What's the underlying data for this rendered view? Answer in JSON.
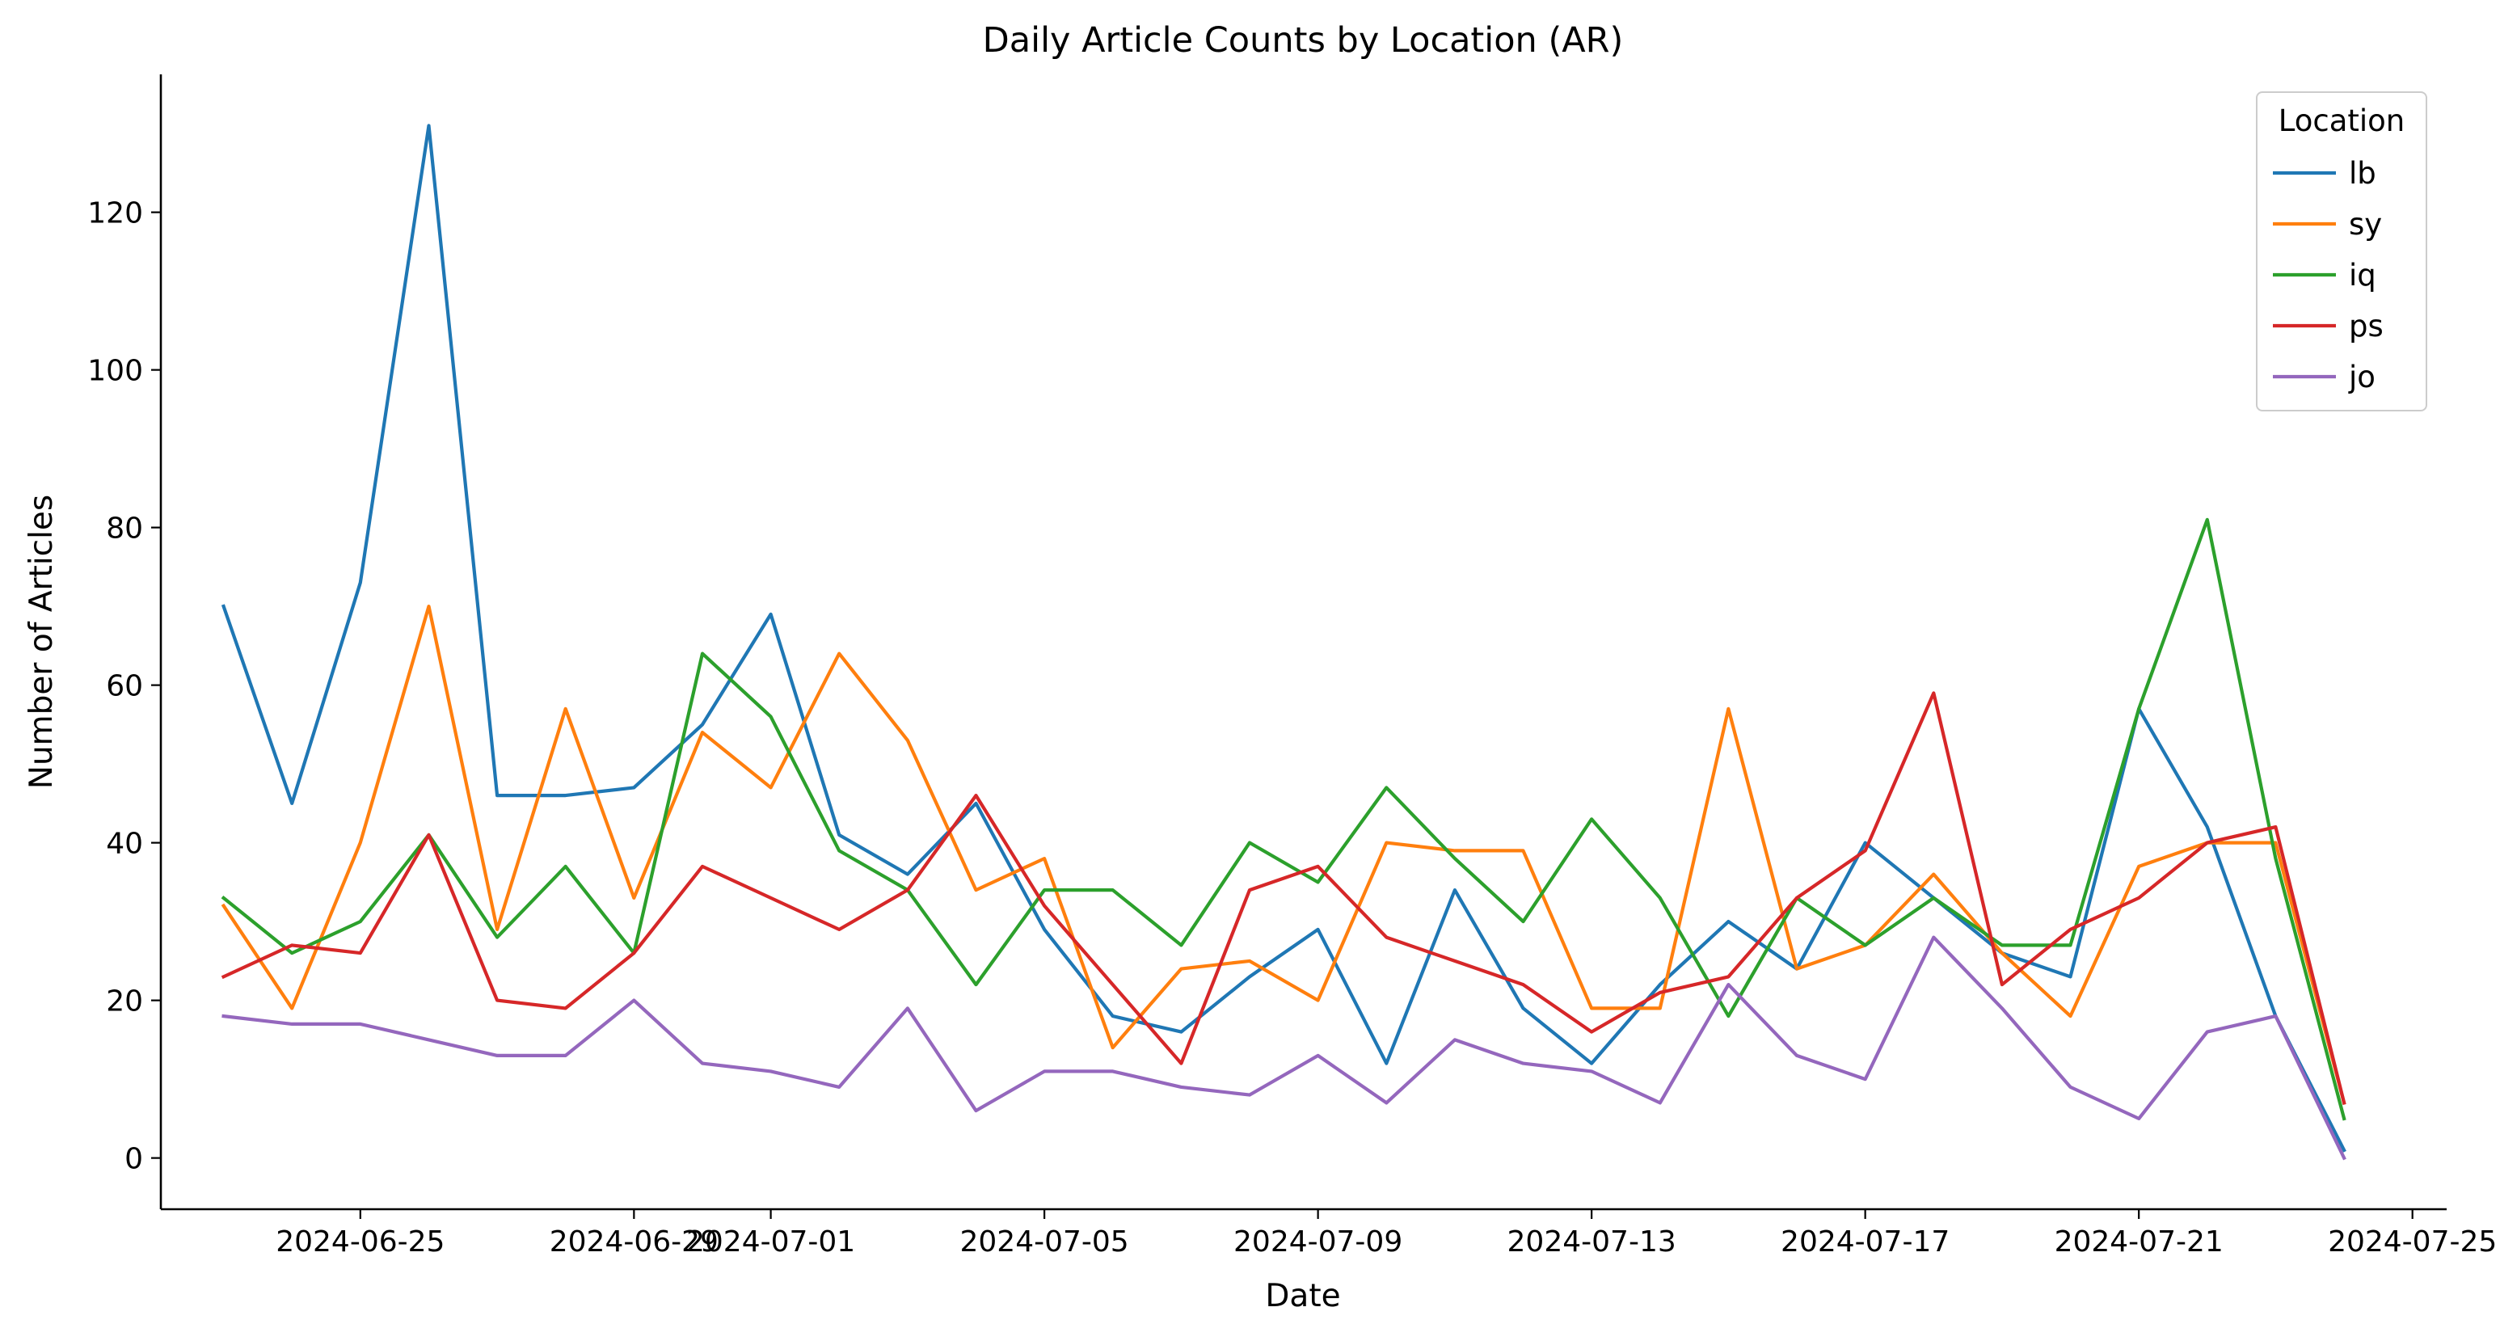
{
  "chart_data": {
    "type": "line",
    "title": "Daily Article Counts by Location (AR)",
    "xlabel": "Date",
    "ylabel": "Number of Articles",
    "x": [
      "2024-06-23",
      "2024-06-24",
      "2024-06-25",
      "2024-06-26",
      "2024-06-27",
      "2024-06-28",
      "2024-06-29",
      "2024-06-30",
      "2024-07-01",
      "2024-07-02",
      "2024-07-03",
      "2024-07-04",
      "2024-07-05",
      "2024-07-06",
      "2024-07-07",
      "2024-07-08",
      "2024-07-09",
      "2024-07-10",
      "2024-07-11",
      "2024-07-12",
      "2024-07-13",
      "2024-07-14",
      "2024-07-15",
      "2024-07-16",
      "2024-07-17",
      "2024-07-18",
      "2024-07-19",
      "2024-07-20",
      "2024-07-21",
      "2024-07-22",
      "2024-07-23",
      "2024-07-24"
    ],
    "xlim": [
      "2024-06-22T02:00",
      "2024-07-25T12:00"
    ],
    "ylim": [
      -6.5,
      137.5
    ],
    "x_ticks": [
      "2024-06-25",
      "2024-06-29",
      "2024-07-01",
      "2024-07-05",
      "2024-07-09",
      "2024-07-13",
      "2024-07-17",
      "2024-07-21",
      "2024-07-25"
    ],
    "y_ticks": [
      0,
      20,
      40,
      60,
      80,
      100,
      120
    ],
    "grid": false,
    "legend": {
      "title": "Location",
      "position": "top-right"
    },
    "series": [
      {
        "name": "lb",
        "color": "#1f77b4",
        "values": [
          70,
          45,
          73,
          131,
          46,
          46,
          47,
          55,
          69,
          41,
          36,
          45,
          29,
          18,
          16,
          23,
          29,
          12,
          34,
          19,
          12,
          22,
          30,
          24,
          40,
          33,
          26,
          23,
          57,
          42,
          18,
          1
        ]
      },
      {
        "name": "sy",
        "color": "#ff7f0e",
        "values": [
          32,
          19,
          40,
          70,
          29,
          57,
          33,
          54,
          47,
          64,
          53,
          34,
          38,
          14,
          24,
          25,
          20,
          40,
          39,
          39,
          19,
          19,
          57,
          24,
          27,
          36,
          26,
          18,
          37,
          40,
          40,
          7
        ]
      },
      {
        "name": "iq",
        "color": "#2ca02c",
        "values": [
          33,
          26,
          30,
          41,
          28,
          37,
          26,
          64,
          56,
          39,
          34,
          22,
          34,
          34,
          27,
          40,
          35,
          47,
          38,
          30,
          43,
          33,
          18,
          33,
          27,
          33,
          27,
          27,
          57,
          81,
          38,
          5
        ]
      },
      {
        "name": "ps",
        "color": "#d62728",
        "values": [
          23,
          27,
          26,
          41,
          20,
          19,
          26,
          37,
          33,
          29,
          34,
          46,
          32,
          22,
          12,
          34,
          37,
          28,
          25,
          22,
          16,
          21,
          23,
          33,
          39,
          59,
          22,
          29,
          33,
          40,
          42,
          7
        ]
      },
      {
        "name": "jo",
        "color": "#9467bd",
        "values": [
          18,
          17,
          17,
          15,
          13,
          13,
          20,
          12,
          11,
          9,
          19,
          6,
          11,
          11,
          9,
          8,
          13,
          7,
          15,
          12,
          11,
          7,
          22,
          13,
          10,
          28,
          19,
          9,
          5,
          16,
          18,
          0
        ]
      }
    ]
  }
}
